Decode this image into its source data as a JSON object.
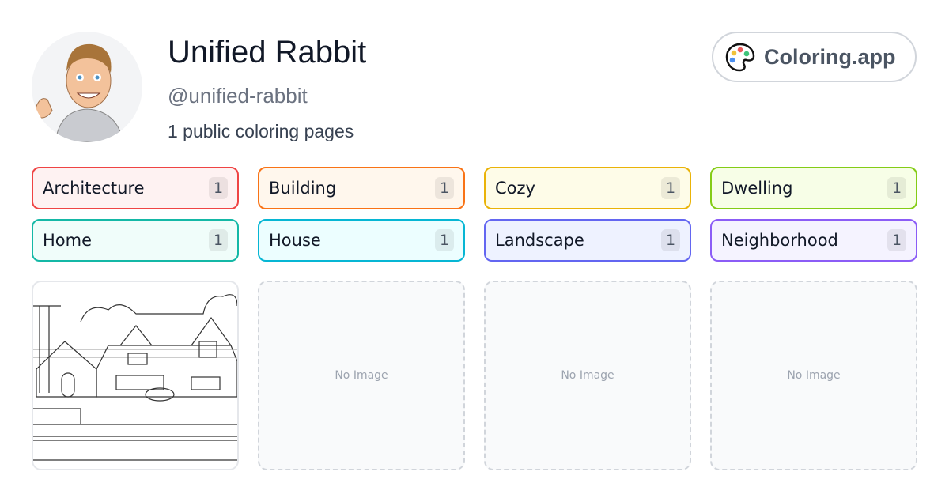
{
  "profile": {
    "name": "Unified Rabbit",
    "handle": "@unified-rabbit",
    "count_text": "1 public coloring pages"
  },
  "brand": {
    "label": "Coloring.app",
    "icon": "palette-icon"
  },
  "tags": [
    {
      "label": "Architecture",
      "count": "1",
      "color": "#ef4444",
      "bg": "#fef2f2"
    },
    {
      "label": "Building",
      "count": "1",
      "color": "#f97316",
      "bg": "#fff7ed"
    },
    {
      "label": "Cozy",
      "count": "1",
      "color": "#eab308",
      "bg": "#fefce8"
    },
    {
      "label": "Dwelling",
      "count": "1",
      "color": "#84cc16",
      "bg": "#f7fee7"
    },
    {
      "label": "Home",
      "count": "1",
      "color": "#14b8a6",
      "bg": "#f0fdfa"
    },
    {
      "label": "House",
      "count": "1",
      "color": "#06b6d4",
      "bg": "#ecfeff"
    },
    {
      "label": "Landscape",
      "count": "1",
      "color": "#6366f1",
      "bg": "#eef2ff"
    },
    {
      "label": "Neighborhood",
      "count": "1",
      "color": "#8b5cf6",
      "bg": "#f5f3ff"
    }
  ],
  "cards": [
    {
      "type": "image"
    },
    {
      "type": "empty",
      "label": "No Image"
    },
    {
      "type": "empty",
      "label": "No Image"
    },
    {
      "type": "empty",
      "label": "No Image"
    }
  ]
}
